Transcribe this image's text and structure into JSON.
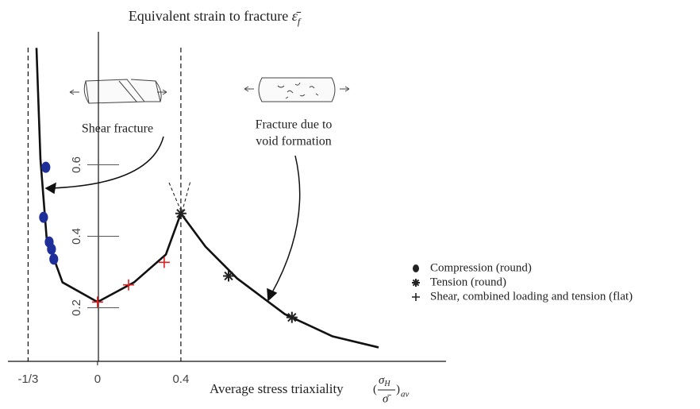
{
  "chart_data": {
    "type": "scatter",
    "title": "Equivalent strain to fracture",
    "title_symbol": "ε̄",
    "title_symbol_sub": "f",
    "x_label": "Average stress triaxiality",
    "x_label_symbol": {
      "numerator": "σ",
      "numerator_sub": "H",
      "denominator": "σ̄",
      "sub": "av"
    },
    "xlim": [
      -0.43,
      1.665
    ],
    "ylim": [
      0.05,
      0.95
    ],
    "xticks": [
      {
        "value": -0.3333,
        "label": "-1/3"
      },
      0,
      0.4
    ],
    "yticks": [
      0.2,
      0.4,
      0.6
    ],
    "legend": "right",
    "series": [
      {
        "name": "Compression (round)",
        "marker": "circle",
        "color": "#1f2f9a",
        "x": [
          -0.248,
          -0.259,
          -0.232,
          -0.221,
          -0.21
        ],
        "y": [
          0.593,
          0.453,
          0.384,
          0.364,
          0.336
        ]
      },
      {
        "name": "Tension (round)",
        "marker": "star",
        "color": "#222222",
        "x": [
          0.4,
          0.629,
          0.933
        ],
        "y": [
          0.464,
          0.289,
          0.173
        ]
      },
      {
        "name": "Shear, combined loading and tension (flat)",
        "marker": "plus",
        "color": "#e02020",
        "x": [
          0,
          0.149,
          0.32
        ],
        "y": [
          0.216,
          0.264,
          0.327
        ]
      }
    ],
    "curve": {
      "x": [
        -0.293,
        -0.274,
        -0.244,
        -0.168,
        0,
        0.175,
        0.328,
        0.4,
        0.518,
        0.67,
        0.899,
        1.128,
        1.349
      ],
      "y": [
        0.927,
        0.616,
        0.393,
        0.271,
        0.216,
        0.271,
        0.349,
        0.464,
        0.371,
        0.282,
        0.182,
        0.12,
        0.089
      ]
    },
    "annotations": [
      {
        "lines": [
          "Shear fracture"
        ]
      },
      {
        "lines": [
          "Fracture due to",
          "void formation"
        ]
      }
    ]
  }
}
